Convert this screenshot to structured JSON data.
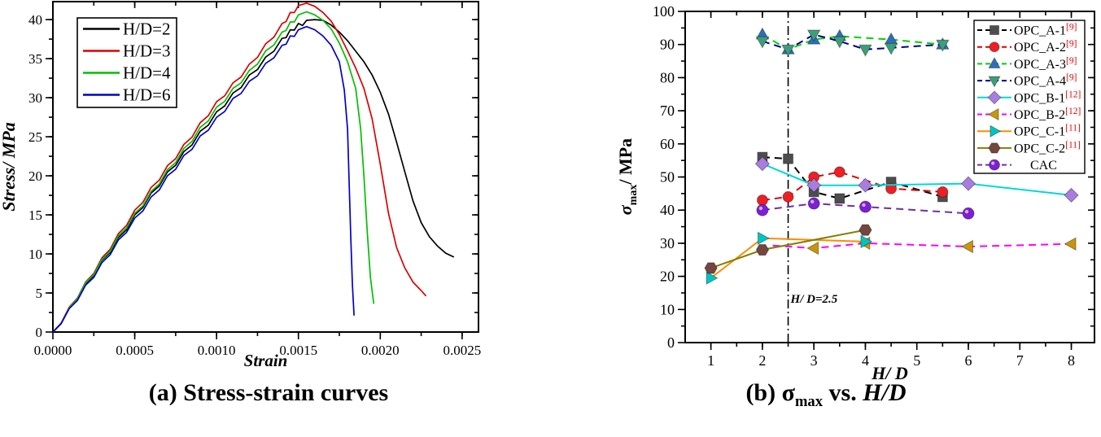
{
  "page": {
    "background": "#ffffff"
  },
  "captions": {
    "a": "(a) Stress-strain curves",
    "b_prefix": "(b) ",
    "b_sigma": "σ",
    "b_sub": "max",
    "b_middle": " vs. ",
    "b_hd": "H/D"
  },
  "chart_data": [
    {
      "id": "a",
      "type": "line",
      "title": "(a) Stress-strain curves",
      "xlabel": "Strain",
      "ylabel": "Stress/ MPa",
      "xlim": [
        0,
        0.0026
      ],
      "ylim": [
        0,
        42.3
      ],
      "grid": false,
      "legend_position": "top-left",
      "xticks": {
        "major": [
          0,
          0.0005,
          0.001,
          0.0015,
          0.002,
          0.0025
        ],
        "labels": [
          "0.0000",
          "0.0005",
          "0.0010",
          "0.0015",
          "0.0020",
          "0.0025"
        ],
        "minor_step": 0.00025
      },
      "yticks": {
        "major": [
          0,
          5,
          10,
          15,
          20,
          25,
          30,
          35,
          40
        ],
        "labels": [
          "0",
          "5",
          "10",
          "15",
          "20",
          "25",
          "30",
          "35",
          "40"
        ],
        "minor_step": 2.5
      },
      "series": [
        {
          "name": "H/D=2",
          "color": "#000000",
          "points": [
            [
              0,
              0
            ],
            [
              0.0001,
              3.1
            ],
            [
              0.0002,
              6.2
            ],
            [
              0.0003,
              9.2
            ],
            [
              0.0004,
              12.1
            ],
            [
              0.0005,
              15.0
            ],
            [
              0.0006,
              17.8
            ],
            [
              0.0007,
              20.5
            ],
            [
              0.0008,
              23.1
            ],
            [
              0.0009,
              25.7
            ],
            [
              0.001,
              28.2
            ],
            [
              0.0011,
              30.6
            ],
            [
              0.0012,
              32.9
            ],
            [
              0.0013,
              35.2
            ],
            [
              0.0014,
              37.6
            ],
            [
              0.00145,
              38.7
            ],
            [
              0.0015,
              39.5
            ],
            [
              0.00155,
              39.9
            ],
            [
              0.0016,
              40.0
            ],
            [
              0.00165,
              39.9
            ],
            [
              0.0017,
              39.3
            ],
            [
              0.00175,
              38.4
            ],
            [
              0.0018,
              37.3
            ],
            [
              0.0019,
              34.6
            ],
            [
              0.00195,
              32.9
            ],
            [
              0.002,
              30.7
            ],
            [
              0.00205,
              27.9
            ],
            [
              0.0021,
              24.3
            ],
            [
              0.00215,
              20.5
            ],
            [
              0.0022,
              16.8
            ],
            [
              0.00225,
              14.0
            ],
            [
              0.0023,
              12.2
            ],
            [
              0.00235,
              11.0
            ],
            [
              0.0024,
              10.1
            ],
            [
              0.00245,
              9.6
            ]
          ]
        },
        {
          "name": "H/D=3",
          "color": "#dd0000",
          "points": [
            [
              0,
              0
            ],
            [
              0.0001,
              3.2
            ],
            [
              0.0002,
              6.4
            ],
            [
              0.0003,
              9.5
            ],
            [
              0.0004,
              12.6
            ],
            [
              0.0005,
              15.6
            ],
            [
              0.0006,
              18.5
            ],
            [
              0.0007,
              21.3
            ],
            [
              0.0008,
              24.0
            ],
            [
              0.0009,
              26.8
            ],
            [
              0.001,
              29.5
            ],
            [
              0.0011,
              31.9
            ],
            [
              0.0012,
              34.3
            ],
            [
              0.0013,
              36.9
            ],
            [
              0.0014,
              39.5
            ],
            [
              0.00145,
              40.9
            ],
            [
              0.0015,
              41.8
            ],
            [
              0.00155,
              42.1
            ],
            [
              0.0016,
              41.7
            ],
            [
              0.00165,
              40.9
            ],
            [
              0.0017,
              39.8
            ],
            [
              0.00175,
              38.1
            ],
            [
              0.0018,
              36.0
            ],
            [
              0.00185,
              33.8
            ],
            [
              0.0019,
              31.2
            ],
            [
              0.00195,
              27.3
            ],
            [
              0.002,
              21.5
            ],
            [
              0.00205,
              15.2
            ],
            [
              0.0021,
              10.8
            ],
            [
              0.00215,
              8.2
            ],
            [
              0.0022,
              6.4
            ],
            [
              0.00225,
              5.3
            ],
            [
              0.00228,
              4.6
            ]
          ]
        },
        {
          "name": "H/D=4",
          "color": "#00c000",
          "points": [
            [
              0,
              0
            ],
            [
              0.0001,
              3.1
            ],
            [
              0.0002,
              6.3
            ],
            [
              0.0003,
              9.3
            ],
            [
              0.0004,
              12.3
            ],
            [
              0.0005,
              15.2
            ],
            [
              0.0006,
              18.0
            ],
            [
              0.0007,
              20.8
            ],
            [
              0.0008,
              23.5
            ],
            [
              0.0009,
              26.2
            ],
            [
              0.001,
              28.8
            ],
            [
              0.0011,
              31.2
            ],
            [
              0.0012,
              33.5
            ],
            [
              0.0013,
              36.0
            ],
            [
              0.0014,
              38.4
            ],
            [
              0.00145,
              39.7
            ],
            [
              0.0015,
              40.6
            ],
            [
              0.00155,
              41.0
            ],
            [
              0.0016,
              40.6
            ],
            [
              0.00165,
              39.9
            ],
            [
              0.0017,
              38.8
            ],
            [
              0.00175,
              37.0
            ],
            [
              0.0018,
              34.6
            ],
            [
              0.00185,
              31.2
            ],
            [
              0.00188,
              26.0
            ],
            [
              0.0019,
              20.0
            ],
            [
              0.00192,
              13.0
            ],
            [
              0.00194,
              7.0
            ],
            [
              0.00196,
              3.6
            ]
          ]
        },
        {
          "name": "H/D=6",
          "color": "#0000cc",
          "points": [
            [
              0,
              0
            ],
            [
              0.0001,
              3.0
            ],
            [
              0.0002,
              6.0
            ],
            [
              0.0003,
              8.9
            ],
            [
              0.0004,
              11.8
            ],
            [
              0.0005,
              14.6
            ],
            [
              0.0006,
              17.3
            ],
            [
              0.0007,
              20.0
            ],
            [
              0.0008,
              22.6
            ],
            [
              0.0009,
              25.1
            ],
            [
              0.001,
              27.5
            ],
            [
              0.0011,
              29.9
            ],
            [
              0.0012,
              32.1
            ],
            [
              0.0013,
              34.4
            ],
            [
              0.0014,
              36.7
            ],
            [
              0.00145,
              37.9
            ],
            [
              0.0015,
              38.7
            ],
            [
              0.00155,
              39.1
            ],
            [
              0.0016,
              38.7
            ],
            [
              0.00165,
              37.9
            ],
            [
              0.0017,
              36.7
            ],
            [
              0.00175,
              34.6
            ],
            [
              0.00178,
              31.0
            ],
            [
              0.0018,
              26.0
            ],
            [
              0.00181,
              19.0
            ],
            [
              0.00182,
              12.0
            ],
            [
              0.00183,
              6.0
            ],
            [
              0.00184,
              2.1
            ]
          ]
        }
      ]
    },
    {
      "id": "b",
      "type": "scatter",
      "title": "(b) σmax vs. H/D",
      "xlabel": "H/ D",
      "ylabel_parts": {
        "sigma": "σ",
        "sub": "max",
        "rest": "/ MPa"
      },
      "xlim": [
        0.5,
        8.45
      ],
      "ylim": [
        0,
        100
      ],
      "grid": false,
      "legend_position": "top-right",
      "xticks": {
        "major": [
          1,
          2,
          3,
          4,
          5,
          6,
          7,
          8
        ],
        "labels": [
          "1",
          "2",
          "3",
          "4",
          "5",
          "6",
          "7",
          "8"
        ],
        "minor_step": 0.5
      },
      "yticks": {
        "major": [
          0,
          10,
          20,
          30,
          40,
          50,
          60,
          70,
          80,
          90,
          100
        ],
        "labels": [
          "0",
          "10",
          "20",
          "30",
          "40",
          "50",
          "60",
          "70",
          "80",
          "90",
          "100"
        ],
        "minor_step": 5
      },
      "vline": {
        "x": 2.5,
        "style": "dash-dot",
        "color": "#000000",
        "label": "H/ D=2.5",
        "label_y": 12
      },
      "series": [
        {
          "name": "OPC_A-1",
          "ref": "[9]",
          "marker": "square",
          "marker_color": "#4d4d4d",
          "line_color": "#000000",
          "line_dash": "dashed",
          "points": [
            [
              2,
              56
            ],
            [
              2.5,
              55.5
            ],
            [
              3,
              45.5
            ],
            [
              3.5,
              43.5
            ],
            [
              4.5,
              48.5
            ],
            [
              5.5,
              44
            ]
          ]
        },
        {
          "name": "OPC_A-2",
          "ref": "[9]",
          "marker": "circle",
          "marker_color": "#ed1f24",
          "line_color": "#dd0000",
          "line_dash": "dashed",
          "points": [
            [
              2,
              43
            ],
            [
              2.5,
              44
            ],
            [
              3,
              50
            ],
            [
              3.5,
              51.5
            ],
            [
              4.5,
              46.5
            ],
            [
              5.5,
              45.5
            ]
          ]
        },
        {
          "name": "OPC_A-3",
          "ref": "[9]",
          "marker": "triangle-up",
          "marker_color": "#2e6fba",
          "line_color": "#00d200",
          "line_dash": "dashed",
          "points": [
            [
              2,
              93
            ],
            [
              2.5,
              88.5
            ],
            [
              3,
              91.5
            ],
            [
              3.5,
              92.5
            ],
            [
              4.5,
              91.5
            ],
            [
              5.5,
              90
            ]
          ]
        },
        {
          "name": "OPC_A-4",
          "ref": "[9]",
          "marker": "triangle-down",
          "marker_color": "#3f9e7a",
          "line_color": "#00008b",
          "line_dash": "dashed",
          "points": [
            [
              2,
              91
            ],
            [
              2.5,
              88.5
            ],
            [
              3,
              93
            ],
            [
              3.5,
              91
            ],
            [
              4,
              88.5
            ],
            [
              4.5,
              89
            ],
            [
              5.5,
              90
            ]
          ]
        },
        {
          "name": "OPC_B-1",
          "ref": "[12]",
          "marker": "diamond",
          "marker_color": "#a97de0",
          "line_color": "#00d8d8",
          "line_dash": "solid",
          "points": [
            [
              2,
              54
            ],
            [
              3,
              47.5
            ],
            [
              4,
              47.5
            ],
            [
              6,
              48
            ],
            [
              8,
              44.5
            ]
          ]
        },
        {
          "name": "OPC_B-2",
          "ref": "[12]",
          "marker": "triangle-left",
          "marker_color": "#c8960c",
          "line_color": "#ff00ff",
          "line_dash": "dashed",
          "line_start": [
            2.2,
            29.3
          ],
          "points": [
            [
              3,
              28.5
            ],
            [
              4,
              30
            ],
            [
              6,
              29
            ],
            [
              8,
              29.8
            ]
          ]
        },
        {
          "name": "OPC_C-1",
          "ref": "[11]",
          "marker": "triangle-right",
          "marker_color": "#00c4c4",
          "line_color": "#ff8c00",
          "line_dash": "solid",
          "points": [
            [
              1,
              19.5
            ],
            [
              2,
              31.5
            ],
            [
              4,
              30.5
            ]
          ]
        },
        {
          "name": "OPC_C-2",
          "ref": "[11]",
          "marker": "hexagon",
          "marker_color": "#74463e",
          "line_color": "#808000",
          "line_dash": "solid",
          "points": [
            [
              1,
              22.5
            ],
            [
              2,
              28
            ],
            [
              4,
              34
            ]
          ]
        },
        {
          "name": "CAC",
          "ref": "",
          "marker": "sphere",
          "marker_color": "#7d1fd3",
          "line_color": "#7030a0",
          "line_dash": "dashed",
          "points": [
            [
              2,
              40
            ],
            [
              3,
              42
            ],
            [
              4,
              41
            ],
            [
              6,
              39
            ]
          ]
        }
      ]
    }
  ]
}
